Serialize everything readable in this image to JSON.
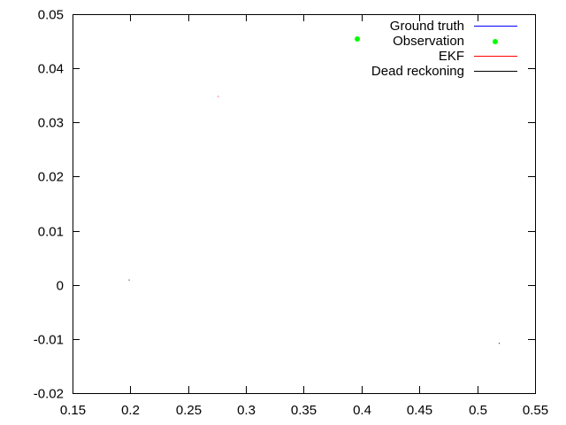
{
  "chart_data": {
    "type": "line",
    "title": "",
    "xlabel": "",
    "ylabel": "",
    "xlim": [
      0.15,
      0.55
    ],
    "ylim": [
      -0.02,
      0.05
    ],
    "x_ticks": [
      0.15,
      0.2,
      0.25,
      0.3,
      0.35,
      0.4,
      0.45,
      0.5,
      0.55
    ],
    "x_tick_labels": [
      "0.15",
      "0.2",
      "0.25",
      "0.3",
      "0.35",
      "0.4",
      "0.45",
      "0.5",
      "0.55"
    ],
    "y_ticks": [
      -0.02,
      -0.01,
      0,
      0.01,
      0.02,
      0.03,
      0.04,
      0.05
    ],
    "y_tick_labels": [
      "-0.02",
      "-0.01",
      "0",
      "0.01",
      "0.02",
      "0.03",
      "0.04",
      "0.05"
    ],
    "grid": false,
    "legend_position": "top-right",
    "series": [
      {
        "name": "Ground truth",
        "color": "#0000ff",
        "style": "line",
        "points": []
      },
      {
        "name": "Observation",
        "color": "#00ff00",
        "style": "points",
        "points": []
      },
      {
        "name": "EKF",
        "color": "#ff0000",
        "style": "line",
        "points": [
          [
            0.276,
            0.0348
          ]
        ]
      },
      {
        "name": "Dead reckoning",
        "color": "#000000",
        "style": "line",
        "points": [
          [
            0.199,
            0.0009
          ],
          [
            0.519,
            -0.0108
          ]
        ]
      }
    ]
  }
}
